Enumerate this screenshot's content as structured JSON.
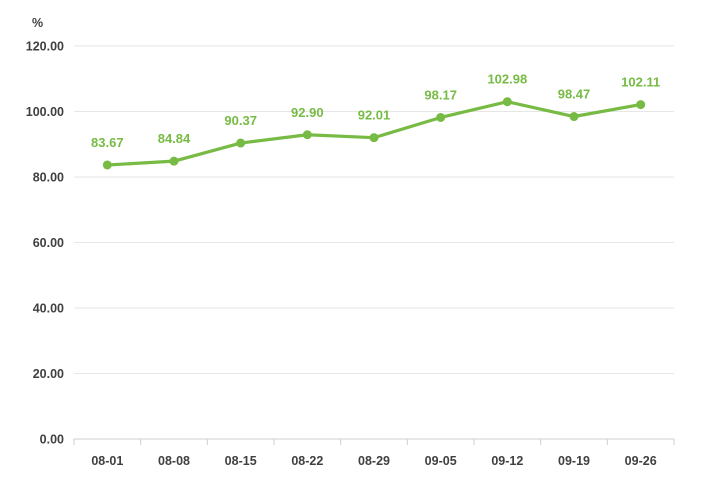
{
  "chart_data": {
    "type": "line",
    "unit_label": "%",
    "categories": [
      "08-01",
      "08-08",
      "08-15",
      "08-22",
      "08-29",
      "09-05",
      "09-12",
      "09-19",
      "09-26"
    ],
    "series": [
      {
        "values": [
          83.67,
          84.84,
          90.37,
          92.9,
          92.01,
          98.17,
          102.98,
          98.47,
          102.11
        ],
        "labels": [
          "83.67",
          "84.84",
          "90.37",
          "92.90",
          "92.01",
          "98.17",
          "102.98",
          "98.47",
          "102.11"
        ]
      }
    ],
    "y_ticks": [
      "0.00",
      "20.00",
      "40.00",
      "60.00",
      "80.00",
      "100.00",
      "120.00"
    ],
    "ylim": [
      0,
      120
    ],
    "grid": true,
    "series_color": "#77bb44",
    "title": "",
    "xlabel": "",
    "ylabel": ""
  }
}
